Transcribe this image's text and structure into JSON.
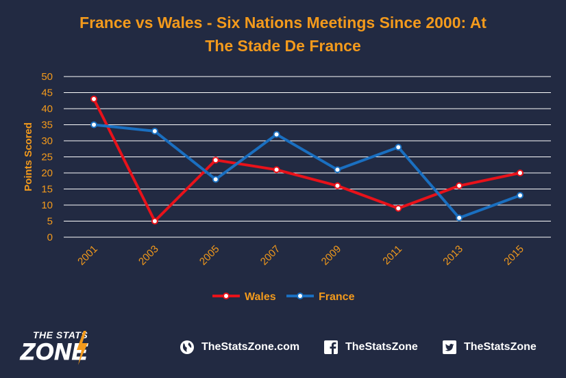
{
  "chart_data": {
    "type": "line",
    "title": [
      "France vs Wales - Six Nations Meetings Since 2000: At",
      "The Stade De France"
    ],
    "ylabel": "Points Scored",
    "xlabel": "",
    "categories": [
      "2001",
      "2003",
      "2005",
      "2007",
      "2009",
      "2011",
      "2013",
      "2015"
    ],
    "yticks": [
      "0",
      "5",
      "10",
      "15",
      "20",
      "25",
      "30",
      "35",
      "40",
      "45",
      "50"
    ],
    "ylim": [
      0,
      50
    ],
    "grid": true,
    "legend_position": "bottom",
    "series": [
      {
        "name": "Wales",
        "color": "#e8121a",
        "values": [
          43,
          5,
          24,
          21,
          16,
          9,
          16,
          20
        ]
      },
      {
        "name": "France",
        "color": "#1a6fc0",
        "values": [
          35,
          33,
          18,
          32,
          21,
          28,
          6,
          13
        ]
      }
    ]
  },
  "colors": {
    "background": "#222a42",
    "accent": "#f39a1c",
    "gridline": "#ffffff"
  },
  "footer": {
    "logo_top": "THE STATS",
    "logo_big": "ZONE",
    "website": "TheStatsZone.com",
    "facebook": "TheStatsZone",
    "twitter": "TheStatsZone",
    "icons": [
      "globe-icon",
      "facebook-icon",
      "twitter-icon"
    ]
  }
}
